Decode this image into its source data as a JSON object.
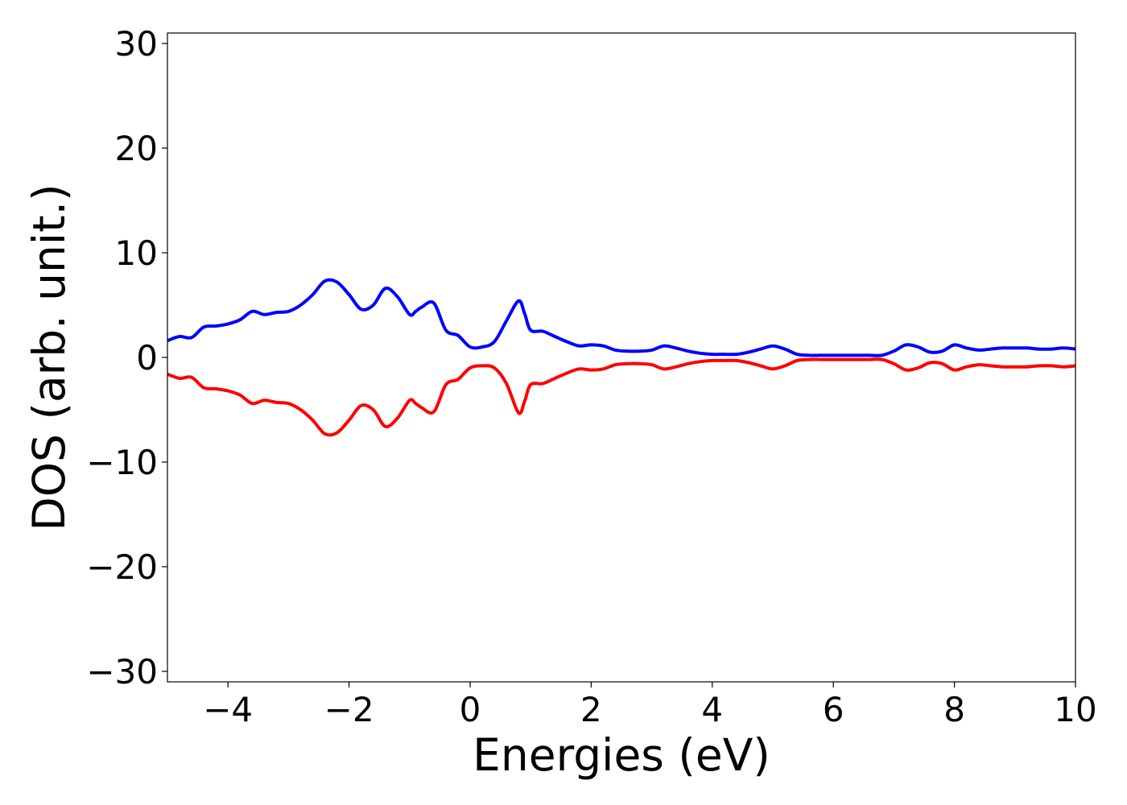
{
  "chart_data": {
    "type": "line",
    "title": "",
    "xlabel": "Energies (eV)",
    "ylabel": "DOS (arb. unit.)",
    "xlim": [
      -5,
      10
    ],
    "ylim": [
      -31,
      31
    ],
    "xticks": [
      -4,
      -2,
      0,
      2,
      4,
      6,
      8,
      10
    ],
    "yticks": [
      -30,
      -20,
      -10,
      0,
      10,
      20,
      30
    ],
    "xtick_labels": [
      "−4",
      "−2",
      "0",
      "2",
      "4",
      "6",
      "8",
      "10"
    ],
    "ytick_labels": [
      "−30",
      "−20",
      "−10",
      "0",
      "10",
      "20",
      "30"
    ],
    "grid": false,
    "legend": "none",
    "series": [
      {
        "color": "#0000ff",
        "x": [
          -5.0,
          -4.8,
          -4.6,
          -4.4,
          -4.2,
          -4.0,
          -3.8,
          -3.6,
          -3.4,
          -3.2,
          -3.0,
          -2.8,
          -2.6,
          -2.4,
          -2.2,
          -2.0,
          -1.8,
          -1.6,
          -1.4,
          -1.2,
          -1.0,
          -0.9,
          -0.8,
          -0.6,
          -0.4,
          -0.2,
          0.0,
          0.2,
          0.4,
          0.6,
          0.8,
          0.9,
          1.0,
          1.2,
          1.4,
          1.6,
          1.8,
          2.0,
          2.2,
          2.4,
          2.6,
          2.8,
          3.0,
          3.2,
          3.4,
          3.6,
          3.8,
          4.0,
          4.2,
          4.4,
          4.6,
          4.8,
          5.0,
          5.2,
          5.4,
          5.6,
          5.8,
          6.0,
          6.2,
          6.4,
          6.6,
          6.8,
          7.0,
          7.2,
          7.4,
          7.6,
          7.8,
          8.0,
          8.2,
          8.4,
          8.6,
          8.8,
          9.0,
          9.2,
          9.4,
          9.6,
          9.8,
          10.0
        ],
        "y": [
          1.6,
          2.0,
          1.9,
          2.9,
          3.0,
          3.2,
          3.6,
          4.4,
          4.1,
          4.3,
          4.4,
          5.0,
          6.0,
          7.3,
          7.2,
          6.0,
          4.6,
          5.0,
          6.6,
          5.8,
          4.1,
          4.4,
          4.8,
          5.2,
          2.6,
          2.1,
          1.0,
          1.0,
          1.5,
          3.5,
          5.4,
          4.2,
          2.6,
          2.5,
          2.0,
          1.5,
          1.1,
          1.2,
          1.1,
          0.7,
          0.6,
          0.6,
          0.7,
          1.1,
          0.9,
          0.6,
          0.4,
          0.3,
          0.3,
          0.3,
          0.5,
          0.8,
          1.1,
          0.8,
          0.3,
          0.2,
          0.2,
          0.2,
          0.2,
          0.2,
          0.2,
          0.2,
          0.6,
          1.2,
          1.0,
          0.5,
          0.6,
          1.2,
          0.9,
          0.7,
          0.8,
          0.9,
          0.9,
          0.9,
          0.8,
          0.8,
          0.9,
          0.8
        ]
      },
      {
        "color": "#ff0000",
        "x": [
          -5.0,
          -4.8,
          -4.6,
          -4.4,
          -4.2,
          -4.0,
          -3.8,
          -3.6,
          -3.4,
          -3.2,
          -3.0,
          -2.8,
          -2.6,
          -2.4,
          -2.2,
          -2.0,
          -1.8,
          -1.6,
          -1.4,
          -1.2,
          -1.0,
          -0.9,
          -0.8,
          -0.6,
          -0.4,
          -0.2,
          0.0,
          0.2,
          0.4,
          0.6,
          0.8,
          0.9,
          1.0,
          1.2,
          1.4,
          1.6,
          1.8,
          2.0,
          2.2,
          2.4,
          2.6,
          2.8,
          3.0,
          3.2,
          3.4,
          3.6,
          3.8,
          4.0,
          4.2,
          4.4,
          4.6,
          4.8,
          5.0,
          5.2,
          5.4,
          5.6,
          5.8,
          6.0,
          6.2,
          6.4,
          6.6,
          6.8,
          7.0,
          7.2,
          7.4,
          7.6,
          7.8,
          8.0,
          8.2,
          8.4,
          8.6,
          8.8,
          9.0,
          9.2,
          9.4,
          9.6,
          9.8,
          10.0
        ],
        "y": [
          -1.6,
          -2.0,
          -1.9,
          -2.9,
          -3.0,
          -3.2,
          -3.6,
          -4.4,
          -4.1,
          -4.3,
          -4.4,
          -5.0,
          -6.0,
          -7.3,
          -7.2,
          -6.0,
          -4.6,
          -5.0,
          -6.6,
          -5.8,
          -4.1,
          -4.4,
          -4.8,
          -5.2,
          -2.6,
          -2.1,
          -1.0,
          -0.8,
          -1.0,
          -2.5,
          -5.3,
          -4.2,
          -2.6,
          -2.5,
          -2.0,
          -1.5,
          -1.1,
          -1.2,
          -1.1,
          -0.7,
          -0.6,
          -0.6,
          -0.7,
          -1.1,
          -0.9,
          -0.6,
          -0.4,
          -0.3,
          -0.3,
          -0.3,
          -0.5,
          -0.8,
          -1.1,
          -0.8,
          -0.3,
          -0.2,
          -0.2,
          -0.2,
          -0.2,
          -0.2,
          -0.2,
          -0.2,
          -0.6,
          -1.2,
          -1.0,
          -0.5,
          -0.6,
          -1.2,
          -0.9,
          -0.7,
          -0.8,
          -0.9,
          -0.9,
          -0.9,
          -0.8,
          -0.8,
          -0.9,
          -0.8
        ]
      }
    ]
  }
}
